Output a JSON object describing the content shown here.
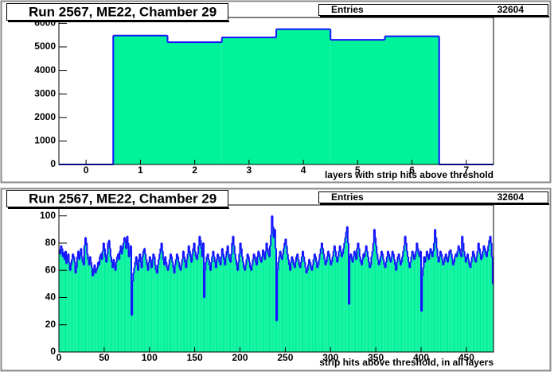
{
  "chart_data": [
    {
      "type": "histogram",
      "title": "Run 2567, ME22, Chamber 29",
      "entries_label": "Entries",
      "entries": 32604,
      "x_label": "layers with strip hits above threshold",
      "bins": [
        -0.5,
        0.5,
        1.5,
        2.5,
        3.5,
        4.5,
        5.5,
        6.5,
        7.5
      ],
      "values": [
        0,
        5480,
        5200,
        5400,
        5750,
        5300,
        5450,
        0
      ],
      "color": "#00f29a",
      "line_color": "#1515ff",
      "xlim": [
        -0.5,
        7.5
      ],
      "ylim": [
        0,
        6250
      ],
      "xticks": [
        0,
        1,
        2,
        3,
        4,
        5,
        6,
        7
      ],
      "yticks": [
        0,
        1000,
        2000,
        3000,
        4000,
        5000,
        6000
      ]
    },
    {
      "type": "histogram",
      "title": "Run 2567, ME22, Chamber 29",
      "entries_label": "Entries",
      "entries": 32604,
      "x_label": "strip hits above threshold, in all layers",
      "bins": [
        0,
        1,
        2,
        3,
        4,
        5,
        6,
        7,
        8,
        9,
        10,
        11,
        12,
        13,
        14,
        15,
        16,
        17,
        18,
        19,
        20,
        21,
        22,
        23,
        24,
        25,
        26,
        27,
        28,
        29,
        30,
        31,
        32,
        33,
        34,
        35,
        36,
        37,
        38,
        39,
        40,
        41,
        42,
        43,
        44,
        45,
        46,
        47,
        48,
        49,
        50,
        51,
        52,
        53,
        54,
        55,
        56,
        57,
        58,
        59,
        60,
        61,
        62,
        63,
        64,
        65,
        66,
        67,
        68,
        69,
        70,
        71,
        72,
        73,
        74,
        75,
        76,
        77,
        78,
        79,
        80,
        81,
        82,
        83,
        84,
        85,
        86,
        87,
        88,
        89,
        90,
        91,
        92,
        93,
        94,
        95,
        96,
        97,
        98,
        99,
        100,
        101,
        102,
        103,
        104,
        105,
        106,
        107,
        108,
        109,
        110,
        111,
        112,
        113,
        114,
        115,
        116,
        117,
        118,
        119,
        120,
        121,
        122,
        123,
        124,
        125,
        126,
        127,
        128,
        129,
        130,
        131,
        132,
        133,
        134,
        135,
        136,
        137,
        138,
        139,
        140,
        141,
        142,
        143,
        144,
        145,
        146,
        147,
        148,
        149,
        150,
        151,
        152,
        153,
        154,
        155,
        156,
        157,
        158,
        159,
        160,
        161,
        162,
        163,
        164,
        165,
        166,
        167,
        168,
        169,
        170,
        171,
        172,
        173,
        174,
        175,
        176,
        177,
        178,
        179,
        180,
        181,
        182,
        183,
        184,
        185,
        186,
        187,
        188,
        189,
        190,
        191,
        192,
        193,
        194,
        195,
        196,
        197,
        198,
        199,
        200,
        201,
        202,
        203,
        204,
        205,
        206,
        207,
        208,
        209,
        210,
        211,
        212,
        213,
        214,
        215,
        216,
        217,
        218,
        219,
        220,
        221,
        222,
        223,
        224,
        225,
        226,
        227,
        228,
        229,
        230,
        231,
        232,
        233,
        234,
        235,
        236,
        237,
        238,
        239,
        240,
        241,
        242,
        243,
        244,
        245,
        246,
        247,
        248,
        249,
        250,
        251,
        252,
        253,
        254,
        255,
        256,
        257,
        258,
        259,
        260,
        261,
        262,
        263,
        264,
        265,
        266,
        267,
        268,
        269,
        270,
        271,
        272,
        273,
        274,
        275,
        276,
        277,
        278,
        279,
        280,
        281,
        282,
        283,
        284,
        285,
        286,
        287,
        288,
        289,
        290,
        291,
        292,
        293,
        294,
        295,
        296,
        297,
        298,
        299,
        300,
        301,
        302,
        303,
        304,
        305,
        306,
        307,
        308,
        309,
        310,
        311,
        312,
        313,
        314,
        315,
        316,
        317,
        318,
        319,
        320,
        321,
        322,
        323,
        324,
        325,
        326,
        327,
        328,
        329,
        330,
        331,
        332,
        333,
        334,
        335,
        336,
        337,
        338,
        339,
        340,
        341,
        342,
        343,
        344,
        345,
        346,
        347,
        348,
        349,
        350,
        351,
        352,
        353,
        354,
        355,
        356,
        357,
        358,
        359,
        360,
        361,
        362,
        363,
        364,
        365,
        366,
        367,
        368,
        369,
        370,
        371,
        372,
        373,
        374,
        375,
        376,
        377,
        378,
        379,
        380,
        381,
        382,
        383,
        384,
        385,
        386,
        387,
        388,
        389,
        390,
        391,
        392,
        393,
        394,
        395,
        396,
        397,
        398,
        399,
        400,
        401,
        402,
        403,
        404,
        405,
        406,
        407,
        408,
        409,
        410,
        411,
        412,
        413,
        414,
        415,
        416,
        417,
        418,
        419,
        420,
        421,
        422,
        423,
        424,
        425,
        426,
        427,
        428,
        429,
        430,
        431,
        432,
        433,
        434,
        435,
        436,
        437,
        438,
        439,
        440,
        441,
        442,
        443,
        444,
        445,
        446,
        447,
        448,
        449,
        450,
        451,
        452,
        453,
        454,
        455,
        456,
        457,
        458,
        459,
        460,
        461,
        462,
        463,
        464,
        465,
        466,
        467,
        468,
        469,
        470,
        471,
        472,
        473,
        474,
        475,
        476,
        477,
        478,
        479,
        480
      ],
      "values": [
        75,
        72,
        78,
        76,
        70,
        73,
        68,
        74,
        65,
        70,
        72,
        66,
        60,
        64,
        68,
        72,
        70,
        66,
        58,
        62,
        70,
        74,
        68,
        72,
        76,
        70,
        66,
        64,
        78,
        84,
        80,
        72,
        68,
        64,
        70,
        66,
        62,
        56,
        60,
        64,
        58,
        60,
        62,
        66,
        64,
        70,
        72,
        68,
        74,
        80,
        76,
        70,
        66,
        72,
        80,
        82,
        76,
        70,
        66,
        62,
        68,
        64,
        60,
        66,
        70,
        72,
        68,
        74,
        78,
        72,
        76,
        80,
        84,
        82,
        76,
        85,
        80,
        70,
        74,
        78,
        27,
        52,
        58,
        62,
        66,
        70,
        64,
        60,
        68,
        72,
        66,
        62,
        70,
        74,
        76,
        72,
        68,
        64,
        60,
        66,
        70,
        66,
        62,
        68,
        72,
        70,
        64,
        60,
        58,
        64,
        68,
        72,
        76,
        80,
        74,
        68,
        64,
        70,
        66,
        62,
        60,
        64,
        68,
        72,
        70,
        66,
        62,
        58,
        64,
        68,
        72,
        70,
        66,
        62,
        60,
        64,
        68,
        74,
        70,
        66,
        62,
        68,
        72,
        78,
        74,
        70,
        66,
        72,
        76,
        80,
        74,
        70,
        68,
        72,
        78,
        85,
        82,
        76,
        70,
        80,
        40,
        60,
        66,
        70,
        72,
        68,
        64,
        60,
        66,
        70,
        74,
        70,
        66,
        62,
        68,
        72,
        70,
        66,
        64,
        70,
        76,
        72,
        68,
        64,
        70,
        74,
        78,
        72,
        68,
        66,
        72,
        80,
        85,
        78,
        72,
        68,
        64,
        60,
        66,
        72,
        80,
        76,
        70,
        66,
        62,
        60,
        64,
        68,
        72,
        70,
        66,
        62,
        60,
        64,
        68,
        72,
        70,
        66,
        64,
        70,
        74,
        72,
        68,
        66,
        70,
        75,
        72,
        68,
        74,
        80,
        76,
        72,
        70,
        78,
        86,
        100,
        92,
        84,
        90,
        76,
        23,
        60,
        66,
        70,
        74,
        70,
        68,
        72,
        76,
        80,
        83,
        78,
        72,
        68,
        64,
        60,
        66,
        70,
        68,
        64,
        62,
        66,
        70,
        72,
        68,
        64,
        62,
        66,
        70,
        74,
        70,
        66,
        62,
        58,
        60,
        64,
        68,
        66,
        62,
        60,
        64,
        68,
        72,
        70,
        66,
        62,
        64,
        68,
        72,
        76,
        80,
        76,
        72,
        68,
        64,
        66,
        70,
        74,
        72,
        68,
        64,
        66,
        70,
        74,
        78,
        74,
        70,
        66,
        70,
        74,
        78,
        74,
        70,
        72,
        76,
        80,
        84,
        88,
        92,
        80,
        35,
        70,
        72,
        68,
        66,
        70,
        74,
        72,
        68,
        76,
        80,
        76,
        70,
        66,
        64,
        68,
        72,
        70,
        74,
        78,
        74,
        70,
        66,
        62,
        64,
        70,
        74,
        80,
        90,
        84,
        78,
        72,
        68,
        64,
        66,
        70,
        74,
        72,
        68,
        64,
        62,
        66,
        70,
        74,
        72,
        68,
        66,
        70,
        74,
        72,
        68,
        64,
        60,
        66,
        70,
        72,
        68,
        64,
        66,
        70,
        74,
        78,
        85,
        80,
        74,
        70,
        66,
        62,
        66,
        70,
        74,
        72,
        68,
        70,
        74,
        80,
        76,
        72,
        70,
        74,
        30,
        56,
        62,
        70,
        66,
        70,
        74,
        72,
        68,
        72,
        76,
        74,
        70,
        74,
        80,
        90,
        84,
        76,
        70,
        66,
        70,
        74,
        72,
        68,
        64,
        66,
        70,
        72,
        68,
        66,
        70,
        74,
        75,
        72,
        68,
        64,
        66,
        70,
        72,
        70,
        74,
        78,
        76,
        72,
        70,
        85,
        80,
        74,
        70,
        66,
        70,
        72,
        68,
        64,
        62,
        66,
        70,
        74,
        72,
        68,
        66,
        70,
        74,
        80,
        76,
        72,
        68,
        70,
        74,
        78,
        76,
        72,
        70,
        74,
        78,
        82,
        85,
        80,
        70,
        50
      ],
      "color": "#00f29a",
      "line_color": "#1515ff",
      "xlim": [
        0,
        480
      ],
      "ylim": [
        0,
        108
      ],
      "xticks": [
        0,
        50,
        100,
        150,
        200,
        250,
        300,
        350,
        400,
        450
      ],
      "yticks": [
        0,
        20,
        40,
        60,
        80,
        100
      ]
    }
  ]
}
